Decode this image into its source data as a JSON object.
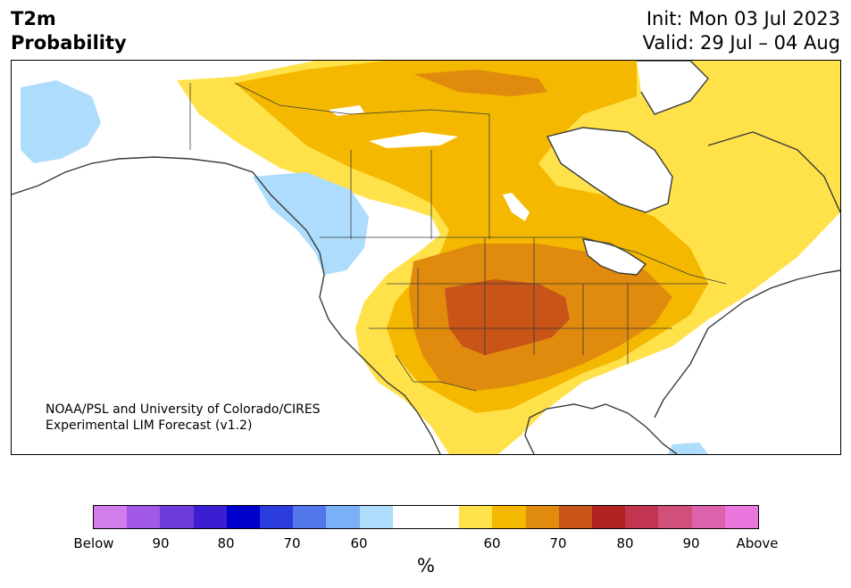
{
  "header": {
    "title_line1": "T2m",
    "title_line2": "Probability",
    "init": "Init: Mon 03 Jul 2023",
    "valid": "Valid: 29 Jul – 04 Aug"
  },
  "map": {
    "credit_line1": "NOAA/PSL and University of Colorado/CIRES",
    "credit_line2": "Experimental LIM Forecast (v1.2)",
    "region": "North America"
  },
  "colorbar": {
    "colors": [
      "#d37ded",
      "#a158e6",
      "#6e3cd8",
      "#3b1ed1",
      "#0000cc",
      "#2a3cdc",
      "#5277ea",
      "#7ab0f5",
      "#aedcfc",
      "#ffffff",
      "#ffffff",
      "#ffe14a",
      "#f5b800",
      "#e08b0d",
      "#c85418",
      "#b22222",
      "#c33451",
      "#d05079",
      "#dc62ac",
      "#ea76dd"
    ],
    "ticks": [
      "Below",
      "90",
      "80",
      "70",
      "60",
      "60",
      "70",
      "80",
      "90",
      "Above"
    ],
    "unit": "%"
  },
  "palette": {
    "cold_light": "#aedcfc",
    "warm_60": "#ffe14a",
    "warm_65": "#f5b800",
    "warm_70": "#e08b0d",
    "warm_75": "#c85418",
    "border": "#3a3a3a"
  }
}
